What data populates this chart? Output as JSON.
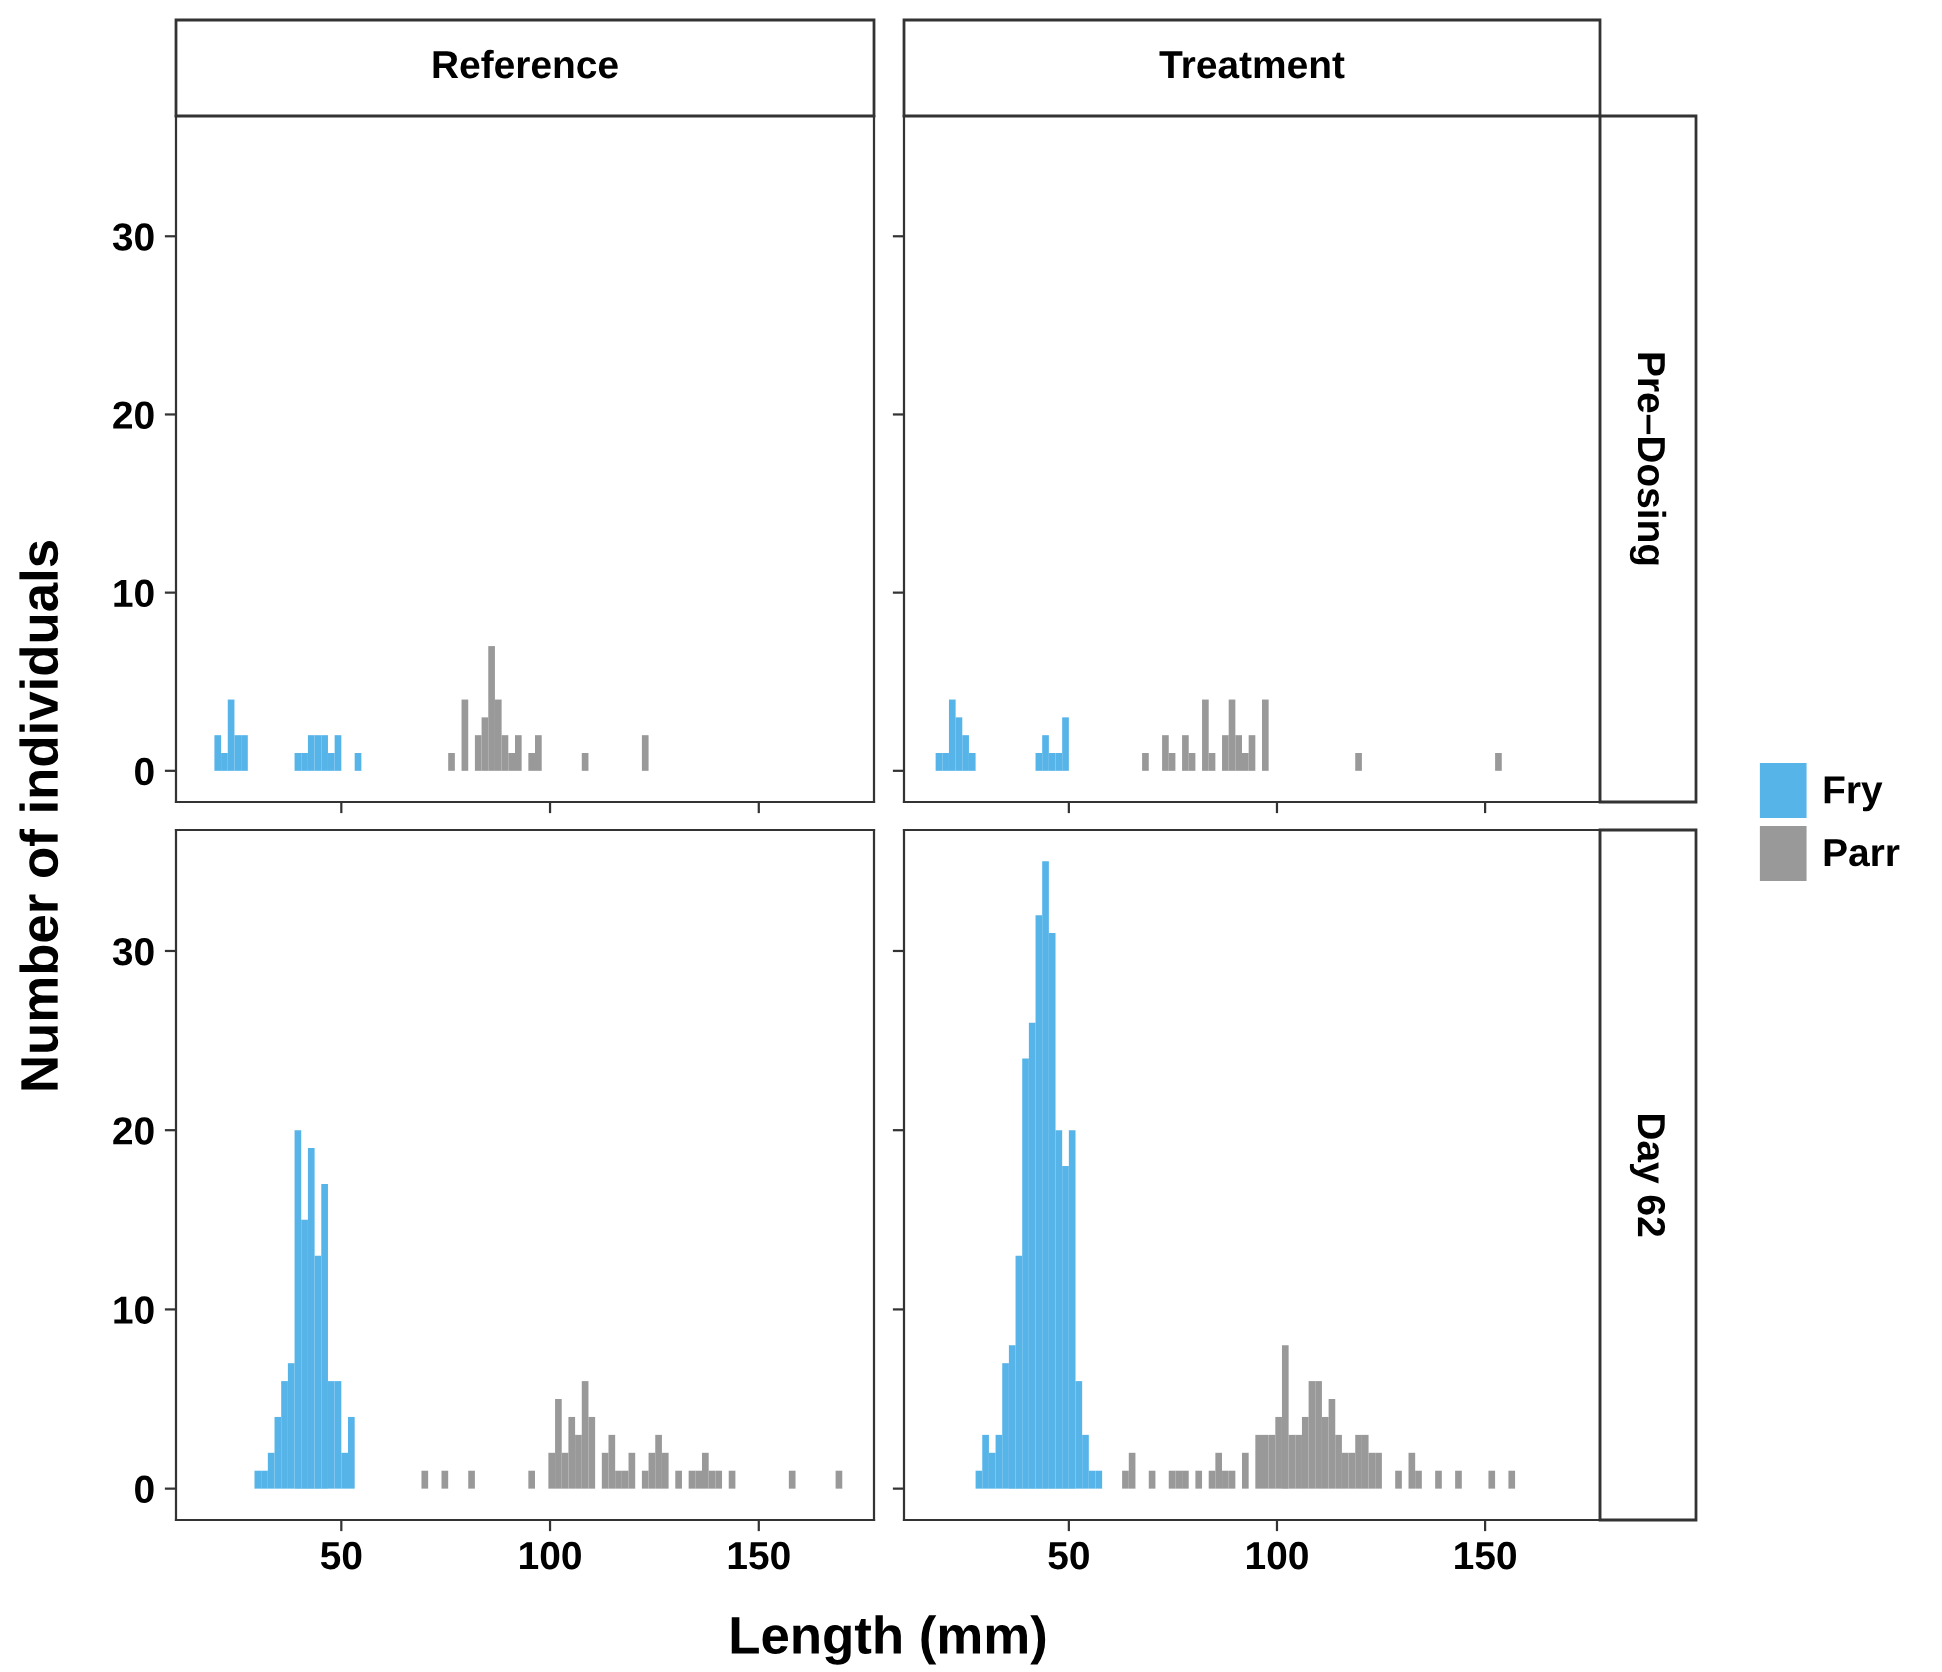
{
  "chart_data": [
    {
      "type": "histogram",
      "title": "Reference",
      "ylabel": "Number of individuals",
      "legend": "right",
      "xlim": [
        10.4,
        177.6
      ],
      "ylim": [
        -1.75,
        36.75
      ],
      "xticks": [
        50,
        100,
        150
      ],
      "yticks": [
        0,
        10,
        20,
        30
      ],
      "tick_labels": "y",
      "grid": false,
      "bins": [
        18,
        19.6,
        21.2,
        22.8,
        24.4,
        26,
        27.6,
        29.2,
        30.8,
        32.4,
        34,
        35.6,
        37.2,
        38.8,
        40.4,
        42,
        43.6,
        45.2,
        46.8,
        48.4,
        50,
        51.6,
        53.2,
        54.8,
        56.4,
        58,
        59.6,
        61.2,
        62.8,
        64.4,
        66,
        67.6,
        69.2,
        70.8,
        72.4,
        74,
        75.6,
        77.2,
        78.8,
        80.4,
        82,
        83.6,
        85.2,
        86.8,
        88.4,
        90,
        91.6,
        93.2,
        94.8,
        96.4,
        98,
        99.6,
        101.2,
        102.8,
        104.4,
        106,
        107.6,
        109.2,
        110.8,
        112.4,
        114,
        115.6,
        117.2,
        118.8,
        120.4,
        122,
        123.6,
        125.2,
        126.8,
        128.4,
        130,
        131.6,
        133.2,
        134.8,
        136.4,
        138,
        139.6,
        141.2,
        142.8,
        144.4,
        146,
        147.6,
        149.2,
        150.8,
        152.4,
        154,
        155.6,
        157.2,
        158.8,
        160.4,
        162,
        163.6,
        165.2,
        166.8,
        168.4,
        170
      ],
      "series": [
        {
          "name": "Fry",
          "color": "#56b4e9",
          "values": [
            0,
            2,
            1,
            4,
            2,
            2,
            0,
            0,
            0,
            0,
            0,
            0,
            0,
            1,
            1,
            2,
            2,
            2,
            1,
            2,
            0,
            0,
            1,
            0,
            0,
            0,
            0,
            0,
            0,
            0,
            0,
            0,
            0,
            0,
            0,
            0,
            0,
            0,
            0,
            0,
            0,
            0,
            0,
            0,
            0,
            0,
            0,
            0,
            0,
            0,
            0,
            0,
            0,
            0,
            0,
            0,
            0,
            0,
            0,
            0,
            0,
            0,
            0,
            0,
            0,
            0,
            0,
            0,
            0,
            0,
            0,
            0,
            0,
            0,
            0,
            0,
            0,
            0,
            0,
            0,
            0,
            0,
            0,
            0,
            0,
            0,
            0,
            0,
            0,
            0,
            0,
            0,
            0,
            0,
            0
          ]
        },
        {
          "name": "Parr",
          "color": "#999999",
          "values": [
            0,
            0,
            0,
            0,
            0,
            0,
            0,
            0,
            0,
            0,
            0,
            0,
            0,
            0,
            0,
            0,
            0,
            0,
            0,
            0,
            0,
            0,
            0,
            0,
            0,
            0,
            0,
            0,
            0,
            0,
            0,
            0,
            0,
            0,
            0,
            0,
            1,
            0,
            4,
            0,
            2,
            3,
            7,
            4,
            2,
            1,
            2,
            0,
            1,
            2,
            0,
            0,
            0,
            0,
            0,
            0,
            1,
            0,
            0,
            0,
            0,
            0,
            0,
            0,
            0,
            2,
            0,
            0,
            0,
            0,
            0,
            0,
            0,
            0,
            0,
            0,
            0,
            0,
            0,
            0,
            0,
            0,
            0,
            0,
            0,
            0,
            0,
            0,
            0,
            0,
            0,
            0,
            0,
            0,
            0
          ]
        }
      ]
    },
    {
      "type": "histogram",
      "title": "Treatment",
      "annotations": [
        "Pre–Dosing"
      ],
      "xlim": [
        10.4,
        177.6
      ],
      "ylim": [
        -1.75,
        36.75
      ],
      "xticks": [
        50,
        100,
        150
      ],
      "yticks": [
        0,
        10,
        20,
        30
      ],
      "tick_labels": false,
      "grid": false,
      "bins": [
        18,
        19.6,
        21.2,
        22.8,
        24.4,
        26,
        27.6,
        29.2,
        30.8,
        32.4,
        34,
        35.6,
        37.2,
        38.8,
        40.4,
        42,
        43.6,
        45.2,
        46.8,
        48.4,
        50,
        51.6,
        53.2,
        54.8,
        56.4,
        58,
        59.6,
        61.2,
        62.8,
        64.4,
        66,
        67.6,
        69.2,
        70.8,
        72.4,
        74,
        75.6,
        77.2,
        78.8,
        80.4,
        82,
        83.6,
        85.2,
        86.8,
        88.4,
        90,
        91.6,
        93.2,
        94.8,
        96.4,
        98,
        99.6,
        101.2,
        102.8,
        104.4,
        106,
        107.6,
        109.2,
        110.8,
        112.4,
        114,
        115.6,
        117.2,
        118.8,
        120.4,
        122,
        123.6,
        125.2,
        126.8,
        128.4,
        130,
        131.6,
        133.2,
        134.8,
        136.4,
        138,
        139.6,
        141.2,
        142.8,
        144.4,
        146,
        147.6,
        149.2,
        150.8,
        152.4,
        154,
        155.6,
        157.2,
        158.8,
        160.4,
        162,
        163.6,
        165.2,
        166.8,
        168.4,
        170
      ],
      "series": [
        {
          "color": "#56b4e9",
          "values": [
            1,
            1,
            4,
            3,
            2,
            1,
            0,
            0,
            0,
            0,
            0,
            0,
            0,
            0,
            0,
            1,
            2,
            1,
            1,
            3,
            0,
            0,
            0,
            0,
            0,
            0,
            0,
            0,
            0,
            0,
            0,
            0,
            0,
            0,
            0,
            0,
            0,
            0,
            0,
            0,
            0,
            0,
            0,
            0,
            0,
            0,
            0,
            0,
            0,
            0,
            0,
            0,
            0,
            0,
            0,
            0,
            0,
            0,
            0,
            0,
            0,
            0,
            0,
            0,
            0,
            0,
            0,
            0,
            0,
            0,
            0,
            0,
            0,
            0,
            0,
            0,
            0,
            0,
            0,
            0,
            0,
            0,
            0,
            0,
            0,
            0,
            0,
            0,
            0,
            0,
            0,
            0,
            0,
            0,
            0
          ]
        },
        {
          "color": "#999999",
          "values": [
            0,
            0,
            0,
            0,
            0,
            0,
            0,
            0,
            0,
            0,
            0,
            0,
            0,
            0,
            0,
            0,
            0,
            0,
            0,
            0,
            0,
            0,
            0,
            0,
            0,
            0,
            0,
            0,
            0,
            0,
            0,
            1,
            0,
            0,
            2,
            1,
            0,
            2,
            1,
            0,
            4,
            1,
            0,
            2,
            4,
            2,
            1,
            2,
            0,
            4,
            0,
            0,
            0,
            0,
            0,
            0,
            0,
            0,
            0,
            0,
            0,
            0,
            0,
            1,
            0,
            0,
            0,
            0,
            0,
            0,
            0,
            0,
            0,
            0,
            0,
            0,
            0,
            0,
            0,
            0,
            0,
            0,
            0,
            0,
            1,
            0,
            0,
            0,
            0,
            0,
            0,
            0,
            0,
            0,
            0
          ]
        }
      ]
    },
    {
      "type": "histogram",
      "xlabel": "Length (mm)",
      "xlim": [
        10.4,
        177.6
      ],
      "ylim": [
        -1.75,
        36.75
      ],
      "xticks": [
        50,
        100,
        150
      ],
      "yticks": [
        0,
        10,
        20,
        30
      ],
      "grid": false,
      "bins": [
        18,
        19.6,
        21.2,
        22.8,
        24.4,
        26,
        27.6,
        29.2,
        30.8,
        32.4,
        34,
        35.6,
        37.2,
        38.8,
        40.4,
        42,
        43.6,
        45.2,
        46.8,
        48.4,
        50,
        51.6,
        53.2,
        54.8,
        56.4,
        58,
        59.6,
        61.2,
        62.8,
        64.4,
        66,
        67.6,
        69.2,
        70.8,
        72.4,
        74,
        75.6,
        77.2,
        78.8,
        80.4,
        82,
        83.6,
        85.2,
        86.8,
        88.4,
        90,
        91.6,
        93.2,
        94.8,
        96.4,
        98,
        99.6,
        101.2,
        102.8,
        104.4,
        106,
        107.6,
        109.2,
        110.8,
        112.4,
        114,
        115.6,
        117.2,
        118.8,
        120.4,
        122,
        123.6,
        125.2,
        126.8,
        128.4,
        130,
        131.6,
        133.2,
        134.8,
        136.4,
        138,
        139.6,
        141.2,
        142.8,
        144.4,
        146,
        147.6,
        149.2,
        150.8,
        152.4,
        154,
        155.6,
        157.2,
        158.8,
        160.4,
        162,
        163.6,
        165.2,
        166.8,
        168.4,
        170
      ],
      "series": [
        {
          "color": "#56b4e9",
          "values": [
            0,
            0,
            0,
            0,
            0,
            0,
            0,
            1,
            1,
            2,
            4,
            6,
            7,
            20,
            15,
            19,
            13,
            17,
            6,
            6,
            2,
            4,
            0,
            0,
            0,
            0,
            0,
            0,
            0,
            0,
            0,
            0,
            0,
            0,
            0,
            0,
            0,
            0,
            0,
            0,
            0,
            0,
            0,
            0,
            0,
            0,
            0,
            0,
            0,
            0,
            0,
            0,
            0,
            0,
            0,
            0,
            0,
            0,
            0,
            0,
            0,
            0,
            0,
            0,
            0,
            0,
            0,
            0,
            0,
            0,
            0,
            0,
            0,
            0,
            0,
            0,
            0,
            0,
            0,
            0,
            0,
            0,
            0,
            0,
            0,
            0,
            0,
            0,
            0,
            0,
            0,
            0,
            0,
            0,
            0
          ]
        },
        {
          "color": "#999999",
          "values": [
            0,
            0,
            0,
            0,
            0,
            0,
            0,
            0,
            0,
            0,
            0,
            0,
            0,
            0,
            0,
            0,
            0,
            0,
            0,
            0,
            0,
            0,
            0,
            0,
            0,
            0,
            0,
            0,
            0,
            0,
            0,
            0,
            1,
            0,
            0,
            1,
            0,
            0,
            0,
            1,
            0,
            0,
            0,
            0,
            0,
            0,
            0,
            0,
            1,
            0,
            0,
            2,
            5,
            2,
            4,
            3,
            6,
            4,
            0,
            2,
            3,
            1,
            1,
            2,
            0,
            1,
            2,
            3,
            2,
            0,
            1,
            0,
            1,
            1,
            2,
            1,
            1,
            0,
            1,
            0,
            0,
            0,
            0,
            0,
            0,
            0,
            0,
            1,
            0,
            0,
            0,
            0,
            0,
            0,
            1
          ]
        }
      ]
    },
    {
      "type": "histogram",
      "annotations": [
        "Day 62"
      ],
      "xlim": [
        10.4,
        177.6
      ],
      "ylim": [
        -1.75,
        36.75
      ],
      "xticks": [
        50,
        100,
        150
      ],
      "yticks": [
        0,
        10,
        20,
        30
      ],
      "tick_labels": "x",
      "grid": false,
      "bins": [
        18,
        19.6,
        21.2,
        22.8,
        24.4,
        26,
        27.6,
        29.2,
        30.8,
        32.4,
        34,
        35.6,
        37.2,
        38.8,
        40.4,
        42,
        43.6,
        45.2,
        46.8,
        48.4,
        50,
        51.6,
        53.2,
        54.8,
        56.4,
        58,
        59.6,
        61.2,
        62.8,
        64.4,
        66,
        67.6,
        69.2,
        70.8,
        72.4,
        74,
        75.6,
        77.2,
        78.8,
        80.4,
        82,
        83.6,
        85.2,
        86.8,
        88.4,
        90,
        91.6,
        93.2,
        94.8,
        96.4,
        98,
        99.6,
        101.2,
        102.8,
        104.4,
        106,
        107.6,
        109.2,
        110.8,
        112.4,
        114,
        115.6,
        117.2,
        118.8,
        120.4,
        122,
        123.6,
        125.2,
        126.8,
        128.4,
        130,
        131.6,
        133.2,
        134.8,
        136.4,
        138,
        139.6,
        141.2,
        142.8,
        144.4,
        146,
        147.6,
        149.2,
        150.8,
        152.4,
        154,
        155.6,
        157.2,
        158.8,
        160.4,
        162,
        163.6,
        165.2,
        166.8,
        168.4,
        170
      ],
      "series": [
        {
          "color": "#56b4e9",
          "values": [
            0,
            0,
            0,
            0,
            0,
            0,
            1,
            3,
            2,
            3,
            7,
            8,
            13,
            24,
            26,
            32,
            35,
            31,
            20,
            18,
            20,
            6,
            3,
            1,
            1,
            0,
            0,
            0,
            0,
            0,
            0,
            0,
            0,
            0,
            0,
            0,
            0,
            0,
            0,
            0,
            0,
            0,
            0,
            0,
            0,
            0,
            0,
            0,
            0,
            0,
            0,
            0,
            0,
            0,
            0,
            0,
            0,
            0,
            0,
            0,
            0,
            0,
            0,
            0,
            0,
            0,
            0,
            0,
            0,
            0,
            0,
            0,
            0,
            0,
            0,
            0,
            0,
            0,
            0,
            0,
            0,
            0,
            0,
            0,
            0,
            0,
            0,
            0,
            0,
            0,
            0,
            0,
            0,
            0,
            0
          ]
        },
        {
          "color": "#999999",
          "values": [
            0,
            0,
            0,
            0,
            0,
            0,
            0,
            0,
            0,
            0,
            0,
            0,
            0,
            0,
            0,
            0,
            0,
            0,
            0,
            0,
            0,
            0,
            0,
            0,
            0,
            0,
            0,
            0,
            1,
            2,
            0,
            0,
            1,
            0,
            0,
            1,
            1,
            1,
            0,
            1,
            0,
            1,
            2,
            1,
            1,
            0,
            2,
            0,
            3,
            3,
            3,
            4,
            8,
            3,
            3,
            4,
            6,
            6,
            4,
            5,
            3,
            2,
            2,
            3,
            3,
            2,
            2,
            0,
            0,
            1,
            0,
            2,
            1,
            0,
            0,
            1,
            0,
            0,
            1,
            0,
            0,
            0,
            0,
            1,
            0,
            0,
            1,
            0,
            0,
            0,
            0,
            0,
            0,
            0,
            0
          ]
        }
      ]
    }
  ]
}
